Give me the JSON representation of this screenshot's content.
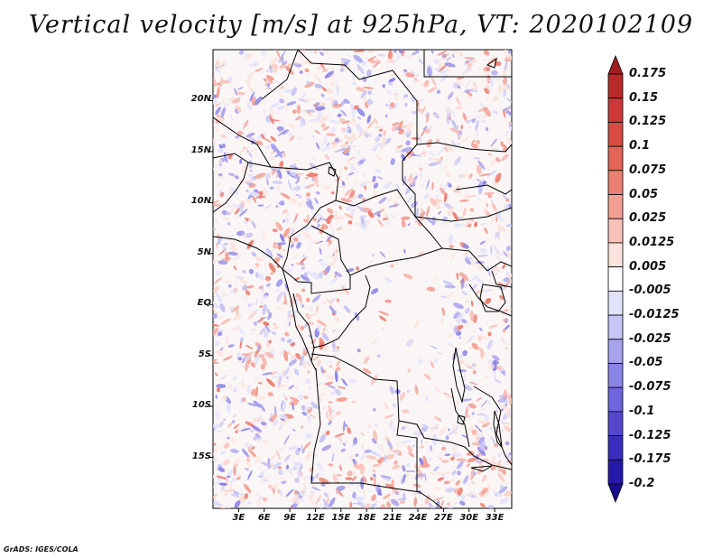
{
  "title": "Vertical velocity [m/s] at 925hPa, VT: 2020102109",
  "map": {
    "lat_labels": [
      "20N",
      "15N",
      "10N",
      "5N",
      "EQ",
      "5S",
      "10S",
      "15S"
    ],
    "lat_values": [
      20,
      15,
      10,
      5,
      0,
      -5,
      -10,
      -15
    ],
    "lon_labels": [
      "3E",
      "6E",
      "9E",
      "12E",
      "15E",
      "18E",
      "21E",
      "24E",
      "27E",
      "30E",
      "33E"
    ],
    "lon_values": [
      3,
      6,
      9,
      12,
      15,
      18,
      21,
      24,
      27,
      30,
      33
    ],
    "lon_range": [
      0,
      35
    ],
    "lat_range": [
      -20,
      25
    ]
  },
  "colorbar": {
    "labels": [
      "0.175",
      "0.15",
      "0.125",
      "0.1",
      "0.075",
      "0.05",
      "0.025",
      "0.0125",
      "0.005",
      "-0.005",
      "-0.0125",
      "-0.025",
      "-0.05",
      "-0.075",
      "-0.1",
      "-0.125",
      "-0.175",
      "-0.2"
    ],
    "colors": [
      "#a01e22",
      "#b72a2a",
      "#c93a36",
      "#d84c44",
      "#e36558",
      "#ec7f72",
      "#f3a094",
      "#f8c2ba",
      "#fce2dd",
      "#ffffff",
      "#e2e2fb",
      "#c6c5f6",
      "#a6a2ee",
      "#8a84e6",
      "#6e66dc",
      "#5447cd",
      "#3a2fbc",
      "#2719a8",
      "#1a0c8e"
    ]
  },
  "credit": "GrADS: IGES/COLA"
}
